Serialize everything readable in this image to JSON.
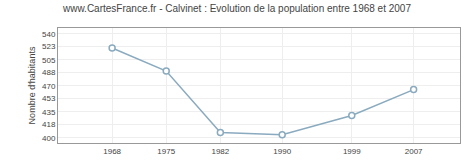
{
  "chart_data": {
    "type": "line",
    "title": "www.CartesFrance.fr - Calvinet : Evolution de la population entre 1968 et 2007",
    "ylabel": "Nombre d'habitants",
    "x": [
      1968,
      1975,
      1982,
      1990,
      1999,
      2007
    ],
    "values": [
      521,
      490,
      407,
      404,
      430,
      465
    ],
    "xlim": [
      1961,
      2013
    ],
    "ylim": [
      393,
      548
    ],
    "xticks": [
      1968,
      1975,
      1982,
      1990,
      1999,
      2007
    ],
    "yticks": [
      400,
      418,
      435,
      453,
      470,
      488,
      505,
      523,
      540
    ],
    "color": "#8aaabf",
    "marker": "circle",
    "grid": true
  }
}
